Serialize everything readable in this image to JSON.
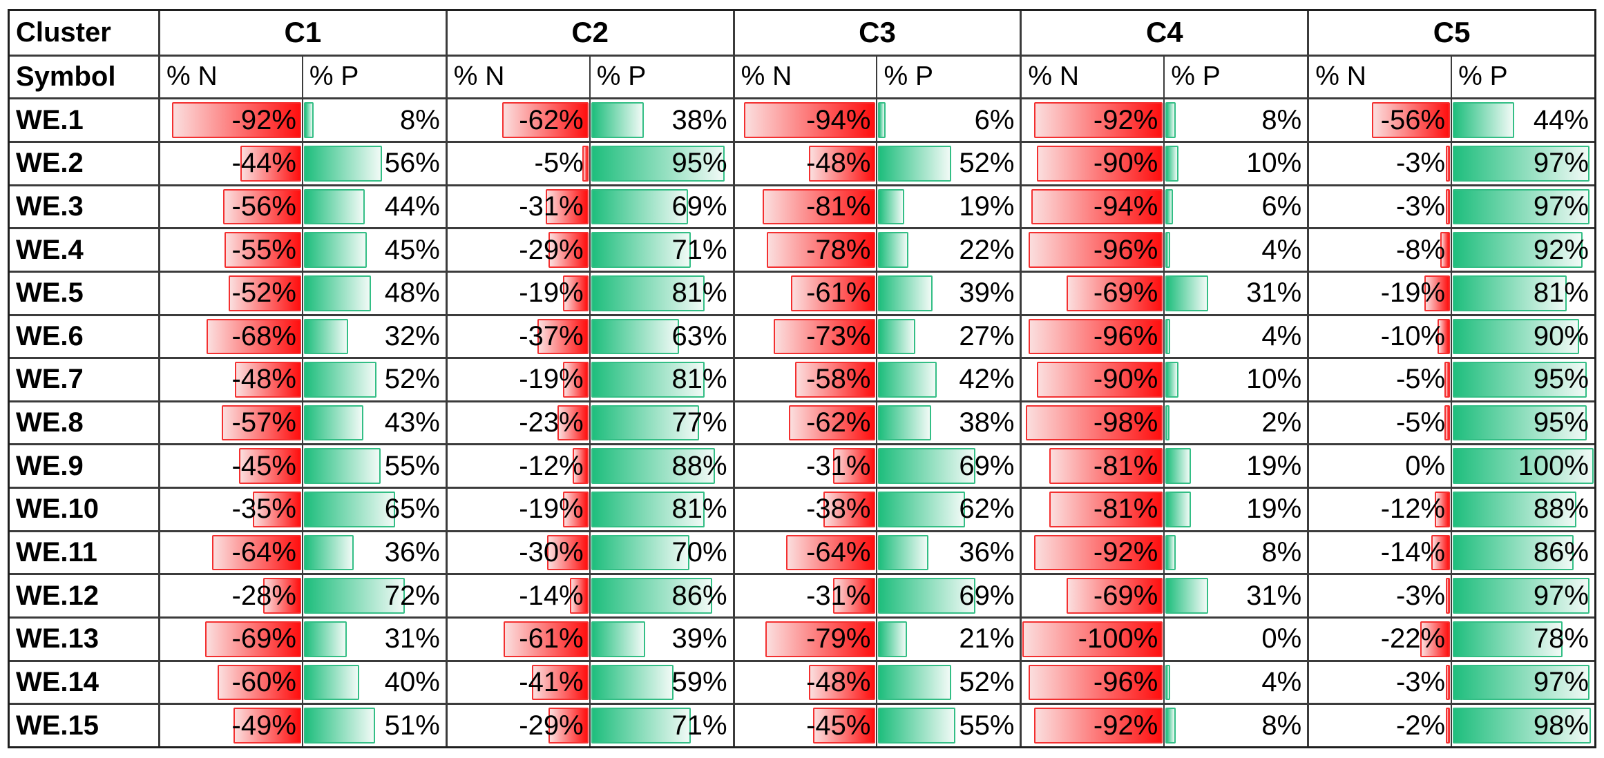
{
  "chart_data": {
    "type": "table",
    "description": "Spreadsheet-style table with conditional-formatting data bars. Negative %N values have right-anchored red gradient bars, positive %P values have left-anchored green gradient bars. Bar length is proportional to absolute percentage (100% = full cell width).",
    "corner_labels": {
      "row1": "Cluster",
      "row2": "Symbol"
    },
    "clusters": [
      "C1",
      "C2",
      "C3",
      "C4",
      "C5"
    ],
    "subheaders": [
      "% N",
      "% P"
    ],
    "rows": [
      {
        "symbol": "WE.1",
        "values": [
          -92,
          8,
          -62,
          38,
          -94,
          6,
          -92,
          8,
          -56,
          44
        ]
      },
      {
        "symbol": "WE.2",
        "values": [
          -44,
          56,
          -5,
          95,
          -48,
          52,
          -90,
          10,
          -3,
          97
        ]
      },
      {
        "symbol": "WE.3",
        "values": [
          -56,
          44,
          -31,
          69,
          -81,
          19,
          -94,
          6,
          -3,
          97
        ]
      },
      {
        "symbol": "WE.4",
        "values": [
          -55,
          45,
          -29,
          71,
          -78,
          22,
          -96,
          4,
          -8,
          92
        ]
      },
      {
        "symbol": "WE.5",
        "values": [
          -52,
          48,
          -19,
          81,
          -61,
          39,
          -69,
          31,
          -19,
          81
        ]
      },
      {
        "symbol": "WE.6",
        "values": [
          -68,
          32,
          -37,
          63,
          -73,
          27,
          -96,
          4,
          -10,
          90
        ]
      },
      {
        "symbol": "WE.7",
        "values": [
          -48,
          52,
          -19,
          81,
          -58,
          42,
          -90,
          10,
          -5,
          95
        ]
      },
      {
        "symbol": "WE.8",
        "values": [
          -57,
          43,
          -23,
          77,
          -62,
          38,
          -98,
          2,
          -5,
          95
        ]
      },
      {
        "symbol": "WE.9",
        "values": [
          -45,
          55,
          -12,
          88,
          -31,
          69,
          -81,
          19,
          0,
          100
        ]
      },
      {
        "symbol": "WE.10",
        "values": [
          -35,
          65,
          -19,
          81,
          -38,
          62,
          -81,
          19,
          -12,
          88
        ]
      },
      {
        "symbol": "WE.11",
        "values": [
          -64,
          36,
          -30,
          70,
          -64,
          36,
          -92,
          8,
          -14,
          86
        ]
      },
      {
        "symbol": "WE.12",
        "values": [
          -28,
          72,
          -14,
          86,
          -31,
          69,
          -69,
          31,
          -3,
          97
        ]
      },
      {
        "symbol": "WE.13",
        "values": [
          -69,
          31,
          -61,
          39,
          -79,
          21,
          -100,
          0,
          -22,
          78
        ]
      },
      {
        "symbol": "WE.14",
        "values": [
          -60,
          40,
          -41,
          59,
          -48,
          52,
          -96,
          4,
          -3,
          97
        ]
      },
      {
        "symbol": "WE.15",
        "values": [
          -49,
          51,
          -29,
          71,
          -45,
          55,
          -92,
          8,
          -2,
          98
        ]
      }
    ],
    "value_format": "percent",
    "colors": {
      "negative_fill_strong": "#ff0f0f",
      "negative_fill_light": "#fbdede",
      "negative_border": "#f33030",
      "positive_fill_strong": "#1fbe7d",
      "positive_fill_light": "#f1faf6",
      "positive_border": "#33be85",
      "grid_line": "#3b3b3b",
      "outer_border": "#1f1f1f",
      "text": "#000000",
      "background": "#ffffff"
    },
    "layout": {
      "grid": "on",
      "header_rows": 2,
      "data_rows": 15,
      "value_columns": 10
    }
  }
}
